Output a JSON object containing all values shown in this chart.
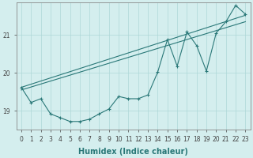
{
  "xlabel": "Humidex (Indice chaleur)",
  "ylabel": "",
  "bg_color": "#d4eeee",
  "line_color": "#2a7878",
  "grid_color": "#aed8d8",
  "xlim": [
    -0.5,
    23.5
  ],
  "ylim": [
    18.5,
    21.85
  ],
  "yticks": [
    19,
    20,
    21
  ],
  "xticks": [
    0,
    1,
    2,
    3,
    4,
    5,
    6,
    7,
    8,
    9,
    10,
    11,
    12,
    13,
    14,
    15,
    16,
    17,
    18,
    19,
    20,
    21,
    22,
    23
  ],
  "series1_x": [
    0,
    1,
    2,
    3,
    4,
    5,
    6,
    7,
    8,
    9,
    10,
    11,
    12,
    13,
    14,
    15,
    16,
    17,
    18,
    19,
    20,
    21,
    22,
    23
  ],
  "series1_y": [
    19.62,
    19.22,
    19.32,
    18.92,
    18.82,
    18.72,
    18.72,
    18.78,
    18.92,
    19.05,
    19.38,
    19.32,
    19.32,
    19.42,
    20.02,
    20.88,
    20.18,
    21.08,
    20.72,
    20.05,
    21.05,
    21.35,
    21.78,
    21.55
  ],
  "series2_x": [
    0,
    23
  ],
  "series2_y": [
    19.55,
    21.35
  ],
  "series3_x": [
    0,
    23
  ],
  "series3_y": [
    19.62,
    21.52
  ],
  "tick_fontsize": 5.5,
  "label_fontsize": 7.0
}
